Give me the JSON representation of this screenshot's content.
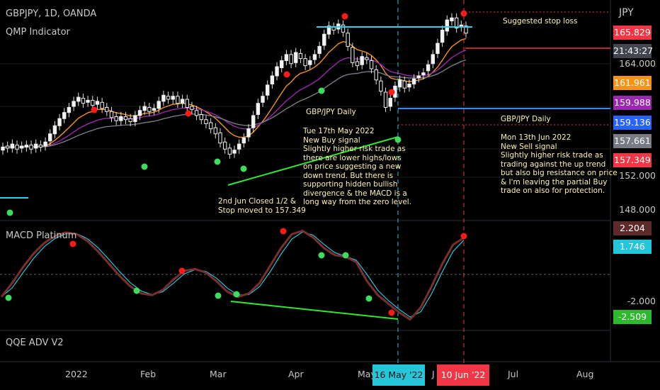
{
  "header": {
    "symbol": "GBPJPY, 1D, OANDA",
    "indicator1": "QMP Indicator",
    "indicator2": "MACD Platinum",
    "indicator3": "QQE ADV V2",
    "currency": "JPY"
  },
  "notes": {
    "stop_loss": "Suggested stop loss",
    "buy_title": "GBP/JPY Daily",
    "buy_text": "Tue 17th May 2022\nNew Buy signal\nSlightly higher risk trade as\nthere are lower highs/lows\non price suggesting a new\ndown trend. But there is\nsupporting hidden bullish\ndivergence & the MACD is a\nlong way from the zero level.",
    "close_text": "2nd Jun Closed 1/2 &\nStop moved to 157.349",
    "sell_title": "GBP/JPY Daily",
    "sell_text": "Mon 13th Jun 2022\nNew Sell signal\nSlightly higher risk trade as\ntrading against the up trend\nbut also big resistance on price\n& I'm leaving the partial Buy\ntrade on also for protection."
  },
  "price_axis": {
    "labels": [
      "164.000",
      "152.000",
      "148.000"
    ]
  },
  "price_tags": [
    {
      "text": "165.829",
      "color": "#f23645"
    },
    {
      "text": "21:43:27",
      "color": "#434651"
    },
    {
      "text": "161.961",
      "color": "#f7931a"
    },
    {
      "text": "159.988",
      "color": "#9c27b0"
    },
    {
      "text": "159.136",
      "color": "#2962ff"
    },
    {
      "text": "157.661",
      "color": "#787b86"
    },
    {
      "text": "157.349",
      "color": "#f23645"
    }
  ],
  "macd_tags": [
    {
      "text": "2.204",
      "color": "#5d2a2a"
    },
    {
      "text": "1.746",
      "color": "#26c6da"
    },
    {
      "text": "-2.509",
      "color": "#2eb82e"
    }
  ],
  "macd_axis_partial": "-2.000",
  "x_axis": {
    "labels": [
      "2022",
      "Feb",
      "Mar",
      "Apr",
      "May",
      "J",
      "Jul",
      "Aug"
    ],
    "highlight_buy": "16 May '22",
    "highlight_sell": "10 Jun '22"
  },
  "chart_data": [
    {
      "type": "candlestick",
      "title": "GBPJPY, 1D, OANDA",
      "ylim": [
        146.5,
        167.2
      ],
      "y_ticks": [
        164.0,
        152.0,
        148.0
      ],
      "x_tick_labels": [
        "2022",
        "Feb",
        "Mar",
        "Apr",
        "May",
        "J",
        "Jul",
        "Aug"
      ],
      "close": [
        153.3,
        153.2,
        153.6,
        153.1,
        153.4,
        153.5,
        153.1,
        153.6,
        153.3,
        153.8,
        154.6,
        155.4,
        156.1,
        156.7,
        157.2,
        157.8,
        158.2,
        157.6,
        157.9,
        157.4,
        157.8,
        157.1,
        156.8,
        156.2,
        155.9,
        156.3,
        156.0,
        155.8,
        156.4,
        156.9,
        157.3,
        156.8,
        157.1,
        157.8,
        158.4,
        158.0,
        158.3,
        157.6,
        158.0,
        157.2,
        157.0,
        156.4,
        156.0,
        155.6,
        155.1,
        154.6,
        153.7,
        153.1,
        152.6,
        153.0,
        153.6,
        154.2,
        155.1,
        156.4,
        157.6,
        158.3,
        159.4,
        160.3,
        161.2,
        161.8,
        162.4,
        161.5,
        162.6,
        162.0,
        161.3,
        161.8,
        162.4,
        163.2,
        164.4,
        165.2,
        164.8,
        165.4,
        164.6,
        163.2,
        161.6,
        161.3,
        162.2,
        161.9,
        161.0,
        159.9,
        158.8,
        157.2,
        158.1,
        159.3,
        159.9,
        159.1,
        159.5,
        160.0,
        160.3,
        160.6,
        161.4,
        162.4,
        163.5,
        164.8,
        165.8,
        166.0,
        165.0,
        165.3,
        164.5
      ],
      "open": [
        153.0,
        153.4,
        153.2,
        153.5,
        153.2,
        153.3,
        153.5,
        153.2,
        153.5,
        153.4,
        153.9,
        154.6,
        155.4,
        156.1,
        156.7,
        157.3,
        157.8,
        158.1,
        157.7,
        157.9,
        157.5,
        157.7,
        157.2,
        156.8,
        156.3,
        155.9,
        156.3,
        156.1,
        155.8,
        156.4,
        156.9,
        157.2,
        156.9,
        157.1,
        157.8,
        158.3,
        158.0,
        158.3,
        157.6,
        158.0,
        157.3,
        156.9,
        156.5,
        156.0,
        155.7,
        155.2,
        154.7,
        153.8,
        153.2,
        152.7,
        153.1,
        153.7,
        154.3,
        155.2,
        156.5,
        157.7,
        158.4,
        159.5,
        160.3,
        161.1,
        161.8,
        162.4,
        161.6,
        162.5,
        162.0,
        161.4,
        161.9,
        162.5,
        163.3,
        164.4,
        165.1,
        164.9,
        165.3,
        164.5,
        163.1,
        161.7,
        161.4,
        162.1,
        161.8,
        160.9,
        159.8,
        158.7,
        157.3,
        158.2,
        159.2,
        159.8,
        159.2,
        159.5,
        160.1,
        160.4,
        160.8,
        161.5,
        162.5,
        163.6,
        164.7,
        165.7,
        166.0,
        165.1,
        165.2
      ]
    },
    {
      "type": "line",
      "title": "MACD Platinum",
      "series": [
        {
          "values": [
            -1.2,
            -0.4,
            0.5,
            1.3,
            1.9,
            2.3,
            2.5,
            2.4,
            2.0,
            1.4,
            0.7,
            0.0,
            -0.6,
            -1.0,
            -1.1,
            -0.8,
            -0.2,
            0.3,
            0.4,
            0.2,
            -0.3,
            -0.9,
            -1.2,
            -1.0,
            -0.4,
            0.6,
            1.6,
            2.4,
            2.6,
            2.2,
            1.6,
            1.2,
            1.1,
            0.8,
            -0.3,
            -1.1,
            -1.6,
            -2.1,
            -2.5,
            -1.8,
            -0.6,
            0.7,
            1.8,
            2.2
          ]
        }
      ]
    }
  ]
}
